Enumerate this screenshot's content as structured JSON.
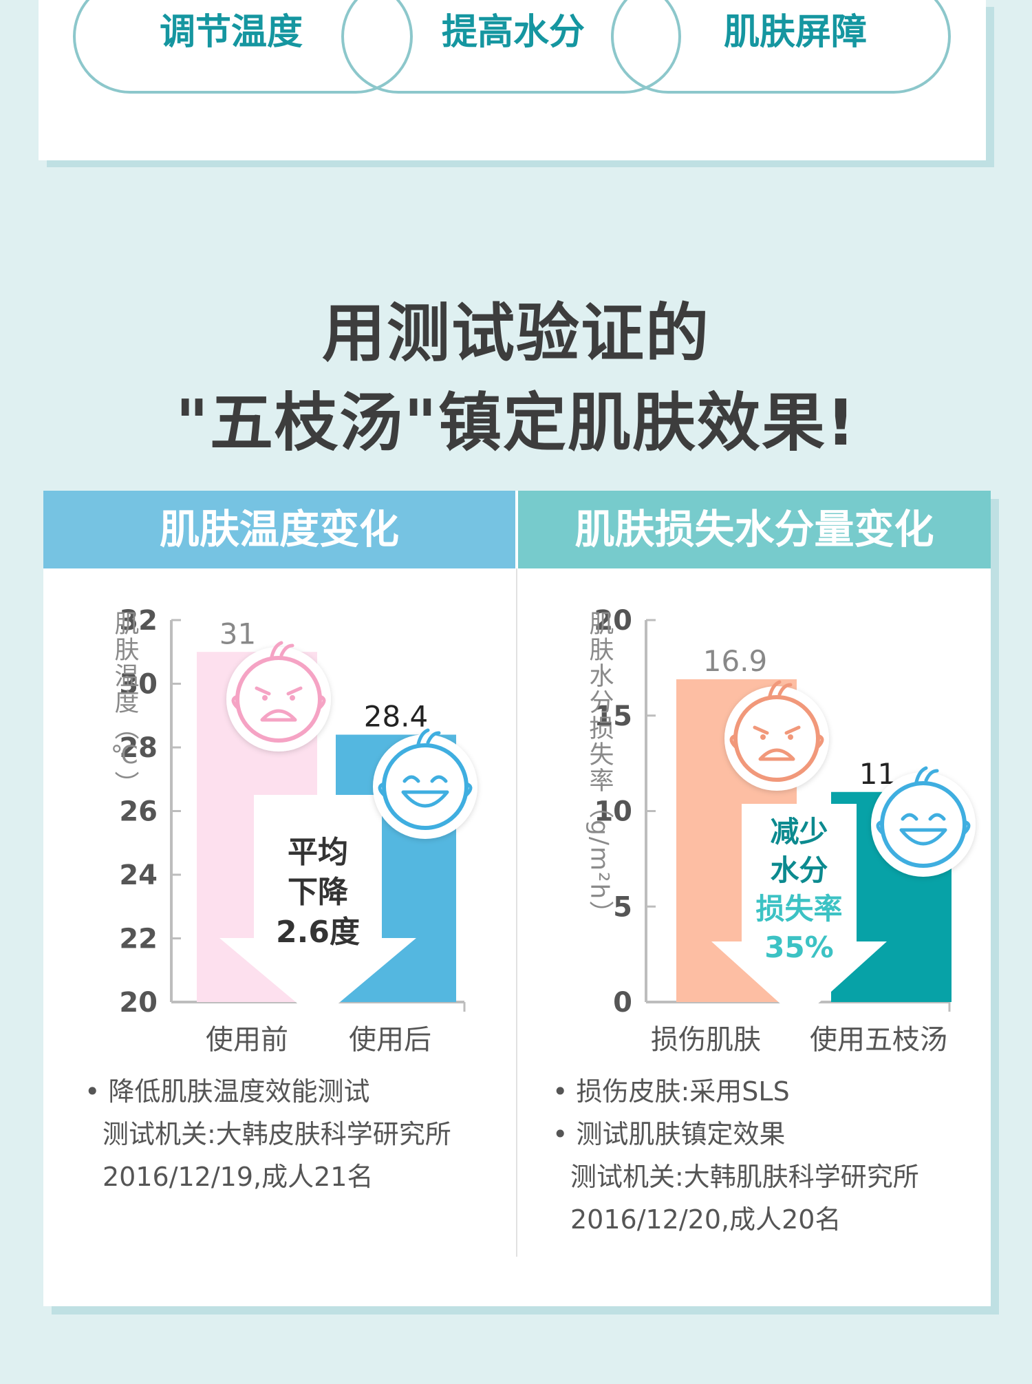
{
  "benefits": [
    "调节温度",
    "提高水分",
    "肌肤屏障"
  ],
  "headline": {
    "line1": "用测试验证的",
    "line2": "\"五枝汤\"镇定肌肤效果!"
  },
  "colors": {
    "teal_text": "#1596a0",
    "left_header": "#76c3e2",
    "right_header": "#77cbcc",
    "pink_bar": "#fde0ee",
    "blue_bar": "#54b7e0",
    "peach_bar": "#fdbea3",
    "teal_bar": "#07a2a7"
  },
  "chart_data": [
    {
      "type": "bar",
      "title": "肌肤温度变化",
      "ylabel": "肌肤温度（℃）",
      "ylim": [
        20,
        32
      ],
      "yticks": [
        "20",
        "22",
        "24",
        "26",
        "28",
        "30",
        "32"
      ],
      "categories": [
        "使用前",
        "使用后"
      ],
      "values": [
        31,
        28.4
      ],
      "value_labels": [
        "31",
        "28.4"
      ],
      "annotation": [
        "平均",
        "下降",
        "2.6度"
      ],
      "icons": [
        "crying-baby-icon",
        "happy-baby-icon"
      ],
      "notes": [
        "降低肌肤温度效能测试",
        "测试机关:大韩皮肤科学研究所",
        "2016/12/19,成人21名"
      ]
    },
    {
      "type": "bar",
      "title": "肌肤损失水分量变化",
      "ylabel": "肌肤水分损失率（g/m²h）",
      "ylim": [
        0,
        20
      ],
      "yticks": [
        "0",
        "5",
        "10",
        "15",
        "20"
      ],
      "categories": [
        "损伤肌肤",
        "使用五枝汤"
      ],
      "values": [
        16.9,
        11
      ],
      "value_labels": [
        "16.9",
        "11"
      ],
      "annotation": [
        "减少",
        "水分",
        "损失率",
        "35%"
      ],
      "icons": [
        "crying-baby-icon",
        "happy-baby-icon"
      ],
      "notes": [
        "损伤皮肤:采用SLS",
        "测试肌肤镇定效果",
        "测试机关:大韩肌肤科学研究所",
        "2016/12/20,成人20名"
      ]
    }
  ]
}
